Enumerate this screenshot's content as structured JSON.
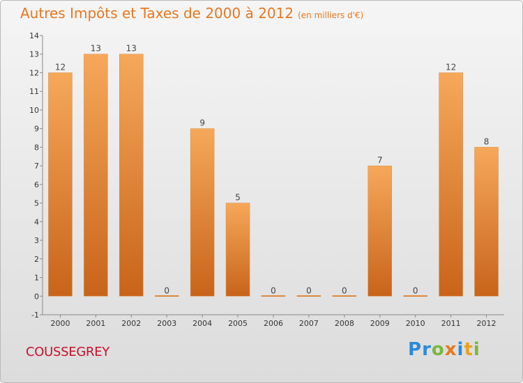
{
  "header": {
    "title": "Autres Impôts et Taxes de 2000 à 2012",
    "subtitle": "(en milliers d'€)"
  },
  "place": "COUSSEGREY",
  "logo": "Proxiti",
  "colors": {
    "title": "#e8771f",
    "place": "#c8102e",
    "bar_top": "#f6a85a",
    "bar_bottom": "#c8641a"
  },
  "chart_data": {
    "type": "bar",
    "categories": [
      "2000",
      "2001",
      "2002",
      "2003",
      "2004",
      "2005",
      "2006",
      "2007",
      "2008",
      "2009",
      "2010",
      "2011",
      "2012"
    ],
    "values": [
      12,
      13,
      13,
      0,
      9,
      5,
      0,
      0,
      0,
      7,
      0,
      12,
      8
    ],
    "data_labels": [
      "12",
      "13",
      "13",
      "0",
      "9",
      "5",
      "0",
      "0",
      "0",
      "7",
      "0",
      "12",
      "8"
    ],
    "y_ticks": [
      "-1",
      "0",
      "1",
      "2",
      "3",
      "4",
      "5",
      "6",
      "7",
      "8",
      "9",
      "10",
      "11",
      "12",
      "13",
      "14"
    ],
    "ylim": [
      -1,
      14
    ],
    "grid": false
  }
}
